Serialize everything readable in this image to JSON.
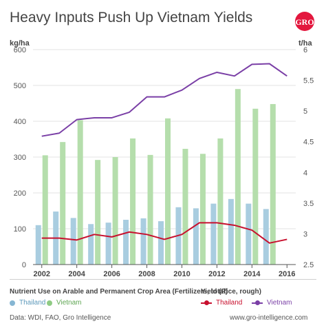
{
  "title": "Heavy Inputs Push Up Vietnam Yields",
  "left_unit": "kg/ha",
  "right_unit": "t/ha",
  "legend": {
    "fertilizer_title": "Nutrient Use on Arable and Permanent Crop Area (Fertilizers, total)",
    "fertilizer_items": [
      {
        "label": "Thailand",
        "color": "#86b6d3"
      },
      {
        "label": "Vietnam",
        "color": "#8fcb84"
      }
    ],
    "yield_title": "Yield (Rice, rough)",
    "yield_items": [
      {
        "label": "Thailand",
        "color": "#c8102e"
      },
      {
        "label": "Vietnam",
        "color": "#7a3fa6"
      }
    ]
  },
  "footer": {
    "source": "Data: WDI, FAO, Gro Intelligence",
    "website": "www.gro-intelligence.com"
  },
  "colors": {
    "thailand_bar": "#a9cde0",
    "vietnam_bar": "#b5deac",
    "thailand_line": "#c8102e",
    "vietnam_line": "#7a3fa6",
    "logo": "#e3173e"
  },
  "chart_data": {
    "type": "bar+line",
    "title": "Heavy Inputs Push Up Vietnam Yields",
    "x_ticks": [
      2002,
      2004,
      2006,
      2008,
      2010,
      2012,
      2014,
      2016
    ],
    "left_axis": {
      "label": "kg/ha",
      "ylim": [
        0,
        600
      ],
      "ticks": [
        0,
        100,
        200,
        300,
        400,
        500,
        600
      ]
    },
    "right_axis": {
      "label": "t/ha",
      "ylim": [
        2.5,
        6
      ],
      "ticks": [
        2.5,
        3,
        3.5,
        4,
        4.5,
        5,
        5.5,
        6
      ]
    },
    "grid": true,
    "bars": {
      "years": [
        2002,
        2003,
        2004,
        2005,
        2006,
        2007,
        2008,
        2009,
        2010,
        2011,
        2012,
        2013,
        2014,
        2015
      ],
      "series": [
        {
          "name": "Thailand",
          "values": [
            110,
            148,
            130,
            113,
            117,
            125,
            129,
            121,
            160,
            157,
            170,
            183,
            170,
            155
          ]
        },
        {
          "name": "Vietnam",
          "values": [
            305,
            342,
            403,
            292,
            300,
            352,
            306,
            408,
            323,
            309,
            352,
            490,
            435,
            448
          ]
        }
      ]
    },
    "lines": {
      "years": [
        2002,
        2003,
        2004,
        2005,
        2006,
        2007,
        2008,
        2009,
        2010,
        2011,
        2012,
        2013,
        2014,
        2015,
        2016
      ],
      "series": [
        {
          "name": "Thailand",
          "values": [
            2.93,
            2.93,
            2.9,
            2.99,
            2.95,
            3.03,
            2.99,
            2.91,
            2.99,
            3.18,
            3.18,
            3.14,
            3.06,
            2.85,
            2.91
          ]
        },
        {
          "name": "Vietnam",
          "values": [
            4.59,
            4.64,
            4.86,
            4.89,
            4.89,
            4.98,
            5.23,
            5.23,
            5.34,
            5.53,
            5.63,
            5.57,
            5.76,
            5.77,
            5.57
          ]
        }
      ]
    }
  }
}
